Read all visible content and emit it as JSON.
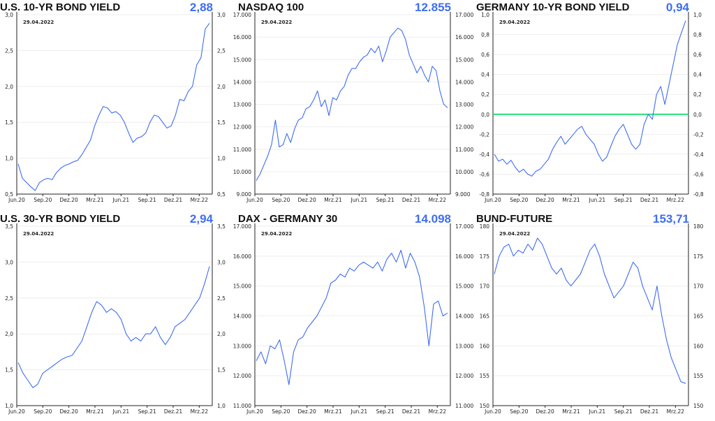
{
  "colors": {
    "line": "#3f6df2",
    "value": "#3f6df2",
    "zero_line": "#22dd77",
    "axis": "#222222",
    "grid": "#eeeeee"
  },
  "chart_data": [
    {
      "type": "line",
      "title": "U.S. 10-YR BOND YIELD",
      "value_label": "2,88",
      "date_label": "29.04.2022",
      "x_ticks": [
        "Jun.20",
        "Sep.20",
        "Dez.20",
        "Mrz.21",
        "Jun.21",
        "Sep.21",
        "Dez.21",
        "Mrz.22"
      ],
      "y_ticks": [
        "3,0",
        "2,5",
        "2,0",
        "1,5",
        "1,0",
        "0,5"
      ],
      "ylim": [
        0.5,
        3.0
      ],
      "series": [
        {
          "values": [
            0.92,
            0.72,
            0.66,
            0.6,
            0.55,
            0.66,
            0.7,
            0.72,
            0.7,
            0.8,
            0.86,
            0.9,
            0.92,
            0.95,
            0.97,
            1.05,
            1.15,
            1.25,
            1.45,
            1.6,
            1.72,
            1.7,
            1.63,
            1.65,
            1.6,
            1.5,
            1.35,
            1.22,
            1.28,
            1.3,
            1.35,
            1.5,
            1.6,
            1.58,
            1.5,
            1.42,
            1.45,
            1.6,
            1.82,
            1.8,
            1.93,
            2.0,
            2.3,
            2.4,
            2.8,
            2.88
          ]
        }
      ]
    },
    {
      "type": "line",
      "title": "NASDAQ 100",
      "value_label": "12.855",
      "date_label": "29.04.2022",
      "x_ticks": [
        "Jun.20",
        "Sep.20",
        "Dez.20",
        "Mrz.21",
        "Jun.21",
        "Sep.21",
        "Dez.21",
        "Mrz.22"
      ],
      "y_ticks": [
        "17.000",
        "16.000",
        "15.000",
        "14.000",
        "13.000",
        "12.000",
        "11.000",
        "10.000",
        "9.000"
      ],
      "ylim": [
        9000,
        17000
      ],
      "series": [
        {
          "values": [
            9600,
            9900,
            10300,
            10700,
            11200,
            12300,
            11100,
            11200,
            11700,
            11300,
            11900,
            12300,
            12400,
            12800,
            12900,
            13200,
            13600,
            12900,
            13200,
            12500,
            13300,
            13200,
            13600,
            13800,
            14300,
            14600,
            14600,
            14900,
            15100,
            15200,
            15500,
            15300,
            15600,
            14900,
            15400,
            16000,
            16200,
            16400,
            16300,
            15900,
            15200,
            14800,
            14400,
            14700,
            14300,
            14000,
            14700,
            14500,
            13600,
            13000,
            12855
          ]
        }
      ]
    },
    {
      "type": "line",
      "title": "GERMANY 10-YR BOND YIELD",
      "value_label": "0,94",
      "date_label": "29.04.2022",
      "x_ticks": [
        "Jun.20",
        "Sep.20",
        "Dez.20",
        "Mrz.21",
        "Jun.21",
        "Sep.21",
        "Dez.21",
        "Mrz.22"
      ],
      "y_ticks": [
        "1,0",
        "0,8",
        "0,6",
        "0,4",
        "0,2",
        "0,0",
        "-0,2",
        "-0,4",
        "-0,6",
        "-0,8"
      ],
      "ylim": [
        -0.8,
        1.0
      ],
      "zero_line": 0,
      "series": [
        {
          "values": [
            -0.4,
            -0.47,
            -0.45,
            -0.5,
            -0.46,
            -0.53,
            -0.58,
            -0.55,
            -0.6,
            -0.62,
            -0.57,
            -0.55,
            -0.5,
            -0.45,
            -0.35,
            -0.28,
            -0.22,
            -0.3,
            -0.25,
            -0.2,
            -0.15,
            -0.12,
            -0.2,
            -0.25,
            -0.3,
            -0.4,
            -0.47,
            -0.43,
            -0.32,
            -0.22,
            -0.15,
            -0.1,
            -0.2,
            -0.3,
            -0.35,
            -0.3,
            -0.1,
            0.0,
            -0.05,
            0.2,
            0.28,
            0.1,
            0.3,
            0.5,
            0.7,
            0.82,
            0.94
          ]
        }
      ]
    },
    {
      "type": "line",
      "title": "U.S. 30-YR BOND YIELD",
      "value_label": "2,94",
      "date_label": "29.04.2022",
      "x_ticks": [
        "Jun.20",
        "Sep.20",
        "Dez.20",
        "Mrz.21",
        "Jun.21",
        "Sep.21",
        "Dez.21",
        "Mrz.22"
      ],
      "y_ticks": [
        "3,5",
        "3,0",
        "2,5",
        "2,0",
        "1,5",
        "1,0"
      ],
      "ylim": [
        1.0,
        3.5
      ],
      "series": [
        {
          "values": [
            1.6,
            1.45,
            1.35,
            1.25,
            1.3,
            1.45,
            1.5,
            1.55,
            1.6,
            1.65,
            1.68,
            1.7,
            1.8,
            1.9,
            2.1,
            2.3,
            2.45,
            2.4,
            2.3,
            2.35,
            2.3,
            2.2,
            2.0,
            1.9,
            1.95,
            1.9,
            2.0,
            2.0,
            2.1,
            1.95,
            1.85,
            1.95,
            2.1,
            2.15,
            2.2,
            2.3,
            2.4,
            2.5,
            2.7,
            2.94
          ]
        }
      ]
    },
    {
      "type": "line",
      "title": "DAX - GERMANY 30",
      "value_label": "14.098",
      "date_label": "29.04.2022",
      "x_ticks": [
        "Jun.20",
        "Sep.20",
        "Dez.20",
        "Mrz.21",
        "Jun.21",
        "Sep.21",
        "Dez.21",
        "Mrz.22"
      ],
      "y_ticks": [
        "17.000",
        "16.000",
        "15.000",
        "14.000",
        "13.000",
        "12.000",
        "11.000"
      ],
      "ylim": [
        11000,
        17000
      ],
      "series": [
        {
          "values": [
            12500,
            12800,
            12400,
            13000,
            12900,
            13200,
            12500,
            11700,
            12800,
            13200,
            13300,
            13600,
            13800,
            14000,
            14300,
            14600,
            15100,
            15200,
            15400,
            15300,
            15600,
            15500,
            15700,
            15800,
            15700,
            15600,
            15800,
            15500,
            15900,
            16100,
            15800,
            16200,
            15600,
            16100,
            15800,
            15300,
            14300,
            13000,
            14400,
            14500,
            14000,
            14098
          ]
        }
      ]
    },
    {
      "type": "line",
      "title": "BUND-FUTURE",
      "value_label": "153,71",
      "date_label": "29.04.2022",
      "x_ticks": [
        "Jun.20",
        "Sep.20",
        "Dez.20",
        "Mrz.21",
        "Jun.21",
        "Sep.21",
        "Dez.21",
        "Mrz.22"
      ],
      "y_ticks": [
        "180",
        "175",
        "170",
        "165",
        "160",
        "155",
        "150"
      ],
      "ylim": [
        150,
        180
      ],
      "series": [
        {
          "values": [
            172,
            175,
            176.5,
            177,
            175,
            176,
            175.5,
            177,
            176,
            178,
            177,
            175,
            173,
            172,
            173,
            171,
            170,
            171,
            172,
            174,
            176,
            177,
            175,
            172,
            170,
            168,
            169,
            170,
            172,
            174,
            173,
            170,
            168,
            166,
            170,
            165,
            161,
            158,
            156,
            154,
            153.71
          ]
        }
      ]
    }
  ]
}
